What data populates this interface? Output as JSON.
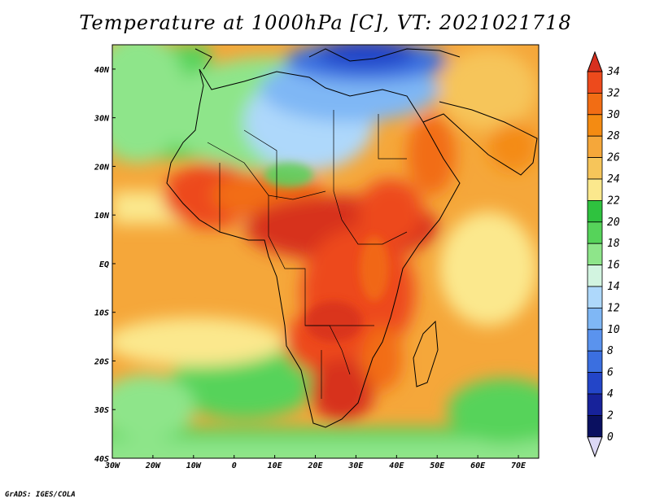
{
  "title": "Temperature at 1000hPa [C], VT: 2021021718",
  "credit": "GrADS: IGES/COLA",
  "map": {
    "lon_range": [
      -30,
      75
    ],
    "lat_range": [
      -40,
      45
    ],
    "x_ticks": [
      "30W",
      "20W",
      "10W",
      "0",
      "10E",
      "20E",
      "30E",
      "40E",
      "50E",
      "60E",
      "70E"
    ],
    "y_ticks": [
      "40N",
      "30N",
      "20N",
      "10N",
      "EQ",
      "10S",
      "20S",
      "30S",
      "40S"
    ]
  },
  "colorbar": {
    "labels": [
      "34",
      "32",
      "30",
      "28",
      "26",
      "24",
      "22",
      "20",
      "18",
      "16",
      "14",
      "12",
      "10",
      "8",
      "6",
      "4",
      "2",
      "0"
    ],
    "colors": [
      "#d7301f",
      "#ed4a1c",
      "#f26d14",
      "#f48b12",
      "#f5a73a",
      "#f6c55a",
      "#fbe88d",
      "#2fc23f",
      "#56d35a",
      "#8ee58a",
      "#d2f4e0",
      "#aed8fb",
      "#7fb7f5",
      "#5a93ee",
      "#3b6fe0",
      "#2345c8",
      "#17229a",
      "#0a1060"
    ]
  }
}
